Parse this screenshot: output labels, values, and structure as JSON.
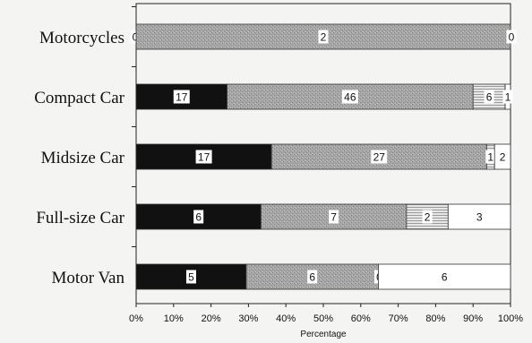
{
  "chart_data": {
    "type": "bar",
    "orientation": "horizontal",
    "stacked": true,
    "normalized": true,
    "categories": [
      "Motorcycles",
      "Compact Car",
      "Midsize Car",
      "Full-size Car",
      "Motor Van"
    ],
    "series": [
      {
        "values": [
          0,
          17,
          17,
          6,
          5
        ],
        "color": "#111111",
        "pattern": "solid"
      },
      {
        "values": [
          2,
          46,
          27,
          7,
          6
        ],
        "color": "#a8a8a8",
        "pattern": "stipple"
      },
      {
        "values": [
          0,
          6,
          1,
          2,
          0
        ],
        "color": "#d4d4d4",
        "pattern": "horizontal-lines"
      },
      {
        "values": [
          0,
          1,
          2,
          3,
          6
        ],
        "color": "#ffffff",
        "pattern": "none"
      }
    ],
    "xlabel": "Percentage",
    "ylabel": "",
    "xlim": [
      0,
      100
    ],
    "xticks": [
      "0%",
      "10%",
      "20%",
      "30%",
      "40%",
      "50%",
      "60%",
      "70%",
      "80%",
      "90%",
      "100%"
    ],
    "grid": false,
    "legend": "none"
  }
}
